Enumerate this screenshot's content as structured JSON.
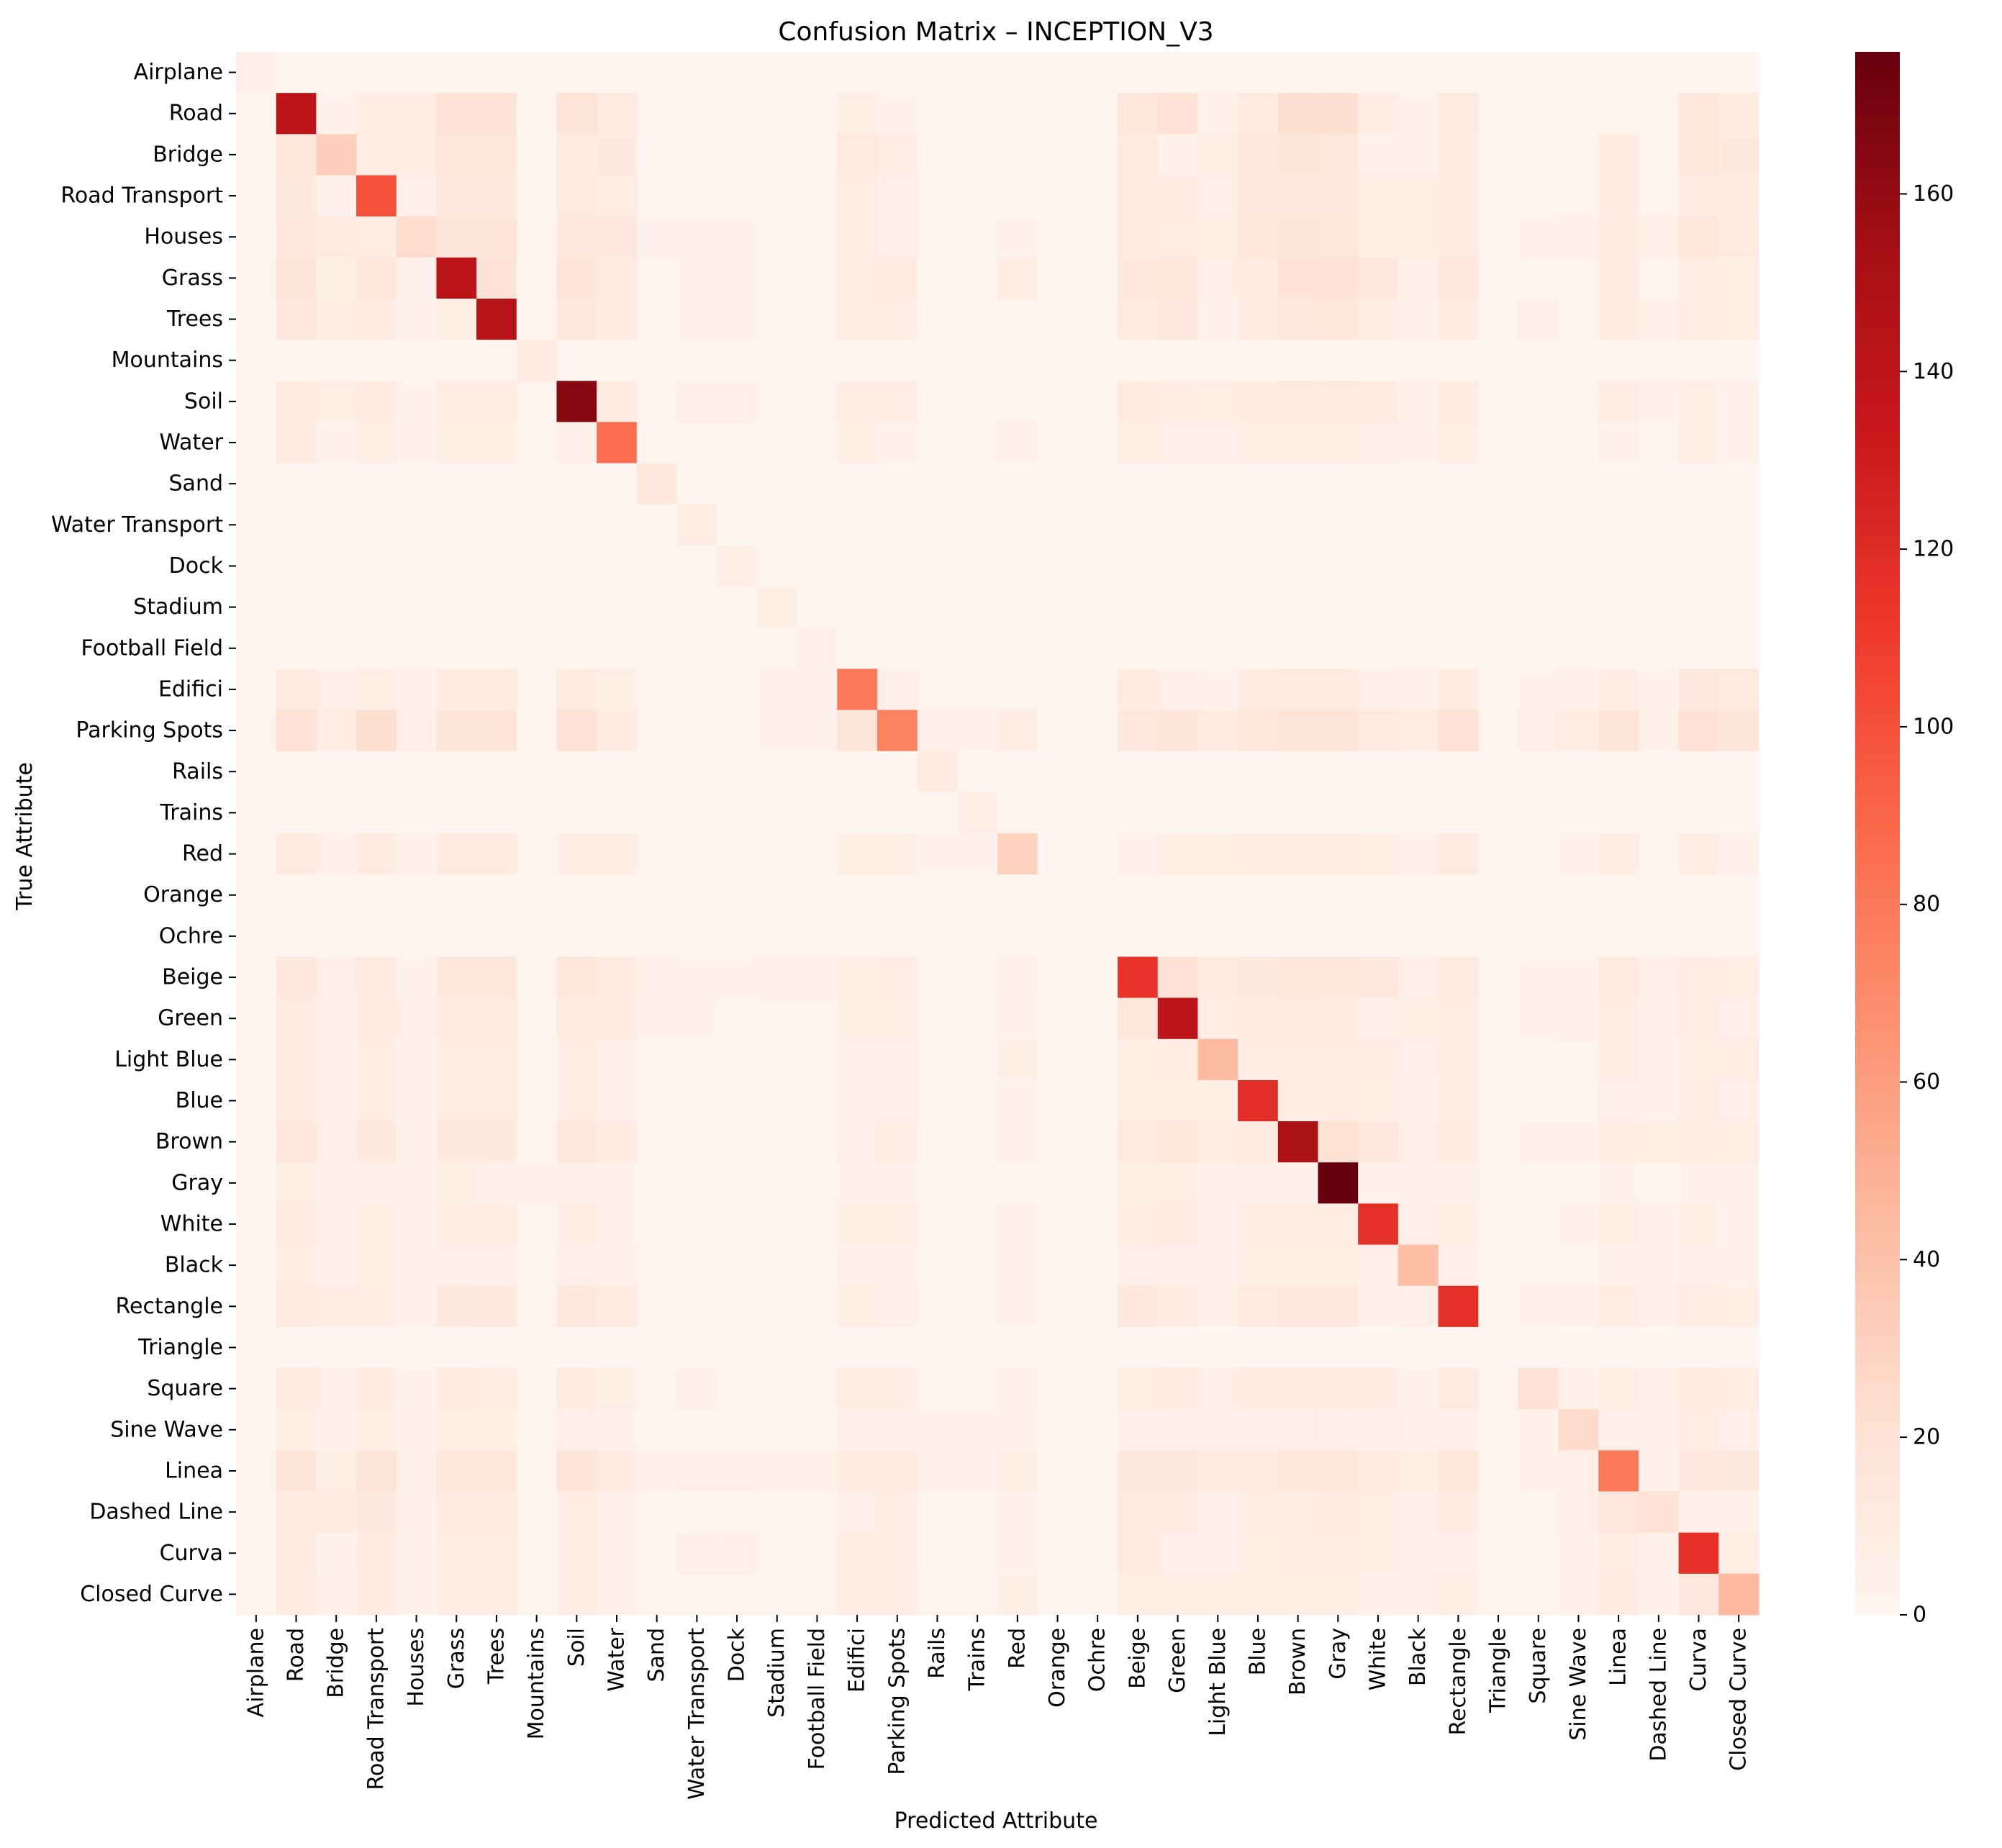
{
  "chart_data": {
    "type": "heatmap",
    "title": "Confusion Matrix – INCEPTION_V3",
    "xlabel": "Predicted Attribute",
    "ylabel": "True Attribute",
    "labels": [
      "Airplane",
      "Road",
      "Bridge",
      "Road Transport",
      "Houses",
      "Grass",
      "Trees",
      "Mountains",
      "Soil",
      "Water",
      "Sand",
      "Water Transport",
      "Dock",
      "Stadium",
      "Football Field",
      "Edifici ",
      "Parking Spots",
      "Rails",
      "Trains",
      "Red",
      "Orange",
      "Ochre",
      "Beige",
      "Green",
      "Light Blue",
      "Blue",
      "Brown",
      "Gray",
      "White",
      "Black",
      "Rectangle",
      "Triangle",
      "Square",
      "Sine Wave",
      "Linea ",
      "Dashed Line",
      "Curva ",
      "Closed Curve"
    ],
    "colormap": "Reds",
    "color_range": [
      0,
      176
    ],
    "colorbar_ticks": [
      0,
      20,
      40,
      60,
      80,
      100,
      120,
      140,
      160
    ],
    "matrix": [
      [
        6,
        0,
        0,
        0,
        0,
        0,
        0,
        0,
        0,
        0,
        0,
        0,
        0,
        0,
        0,
        0,
        0,
        0,
        0,
        0,
        0,
        0,
        0,
        0,
        0,
        0,
        0,
        0,
        0,
        0,
        0,
        0,
        0,
        0,
        0,
        0,
        0,
        0
      ],
      [
        2,
        140,
        4,
        9,
        8,
        20,
        20,
        2,
        18,
        12,
        2,
        2,
        2,
        2,
        2,
        7,
        4,
        2,
        2,
        2,
        0,
        0,
        16,
        20,
        5,
        12,
        22,
        22,
        9,
        4,
        12,
        2,
        2,
        2,
        2,
        2,
        16,
        10
      ],
      [
        2,
        16,
        32,
        9,
        9,
        16,
        16,
        2,
        12,
        13,
        2,
        2,
        2,
        2,
        2,
        12,
        8,
        2,
        2,
        2,
        0,
        0,
        12,
        4,
        7,
        14,
        17,
        15,
        5,
        5,
        10,
        2,
        2,
        2,
        10,
        2,
        16,
        13
      ],
      [
        2,
        13,
        3,
        100,
        6,
        14,
        14,
        2,
        12,
        9,
        2,
        2,
        2,
        2,
        2,
        8,
        6,
        2,
        2,
        2,
        0,
        0,
        10,
        12,
        6,
        14,
        15,
        14,
        7,
        7,
        10,
        2,
        2,
        2,
        10,
        2,
        12,
        10
      ],
      [
        2,
        15,
        12,
        9,
        24,
        17,
        17,
        2,
        14,
        14,
        3,
        3,
        3,
        2,
        2,
        8,
        6,
        2,
        2,
        3,
        0,
        0,
        12,
        9,
        7,
        16,
        17,
        16,
        7,
        7,
        10,
        2,
        3,
        5,
        10,
        5,
        16,
        12
      ],
      [
        2,
        17,
        7,
        16,
        3,
        142,
        20,
        2,
        17,
        10,
        2,
        4,
        4,
        2,
        2,
        8,
        10,
        2,
        2,
        8,
        0,
        0,
        14,
        16,
        6,
        12,
        20,
        20,
        14,
        5,
        14,
        2,
        2,
        2,
        10,
        2,
        9,
        7
      ],
      [
        2,
        14,
        9,
        11,
        3,
        7,
        145,
        2,
        14,
        10,
        2,
        4,
        4,
        2,
        2,
        8,
        8,
        2,
        2,
        2,
        0,
        0,
        10,
        14,
        4,
        10,
        14,
        16,
        9,
        5,
        10,
        2,
        6,
        2,
        10,
        5,
        9,
        7
      ],
      [
        0,
        0,
        0,
        0,
        0,
        0,
        0,
        10,
        0,
        0,
        0,
        0,
        0,
        0,
        0,
        0,
        0,
        0,
        0,
        0,
        0,
        0,
        0,
        0,
        0,
        0,
        0,
        0,
        0,
        0,
        0,
        0,
        0,
        0,
        0,
        0,
        0,
        0
      ],
      [
        2,
        10,
        7,
        10,
        3,
        9,
        9,
        2,
        165,
        10,
        2,
        6,
        6,
        2,
        2,
        8,
        8,
        2,
        2,
        2,
        0,
        0,
        10,
        9,
        7,
        11,
        12,
        12,
        10,
        5,
        11,
        2,
        2,
        2,
        9,
        5,
        7,
        5
      ],
      [
        2,
        10,
        3,
        7,
        3,
        7,
        7,
        2,
        6,
        85,
        2,
        2,
        2,
        2,
        2,
        7,
        5,
        2,
        2,
        5,
        0,
        0,
        7,
        6,
        6,
        7,
        7,
        7,
        6,
        3,
        7,
        2,
        2,
        2,
        5,
        2,
        7,
        5
      ],
      [
        0,
        0,
        0,
        0,
        0,
        0,
        0,
        0,
        0,
        0,
        14,
        0,
        0,
        0,
        0,
        0,
        0,
        0,
        0,
        0,
        0,
        0,
        0,
        0,
        0,
        0,
        0,
        0,
        0,
        0,
        0,
        0,
        0,
        0,
        0,
        0,
        0,
        0
      ],
      [
        0,
        0,
        0,
        0,
        0,
        0,
        0,
        0,
        0,
        0,
        0,
        8,
        0,
        0,
        0,
        0,
        0,
        0,
        0,
        0,
        0,
        0,
        0,
        0,
        0,
        0,
        0,
        0,
        0,
        0,
        0,
        0,
        0,
        0,
        0,
        0,
        0,
        0
      ],
      [
        0,
        0,
        0,
        0,
        0,
        0,
        0,
        0,
        0,
        0,
        0,
        0,
        7,
        0,
        0,
        0,
        0,
        0,
        0,
        0,
        0,
        0,
        0,
        0,
        0,
        0,
        0,
        0,
        0,
        0,
        0,
        0,
        0,
        0,
        0,
        0,
        0,
        0
      ],
      [
        0,
        0,
        0,
        0,
        0,
        0,
        0,
        0,
        0,
        0,
        0,
        0,
        0,
        7,
        0,
        0,
        0,
        0,
        0,
        0,
        0,
        0,
        0,
        0,
        0,
        0,
        0,
        0,
        0,
        0,
        0,
        0,
        0,
        0,
        0,
        0,
        0,
        0
      ],
      [
        0,
        0,
        0,
        0,
        0,
        0,
        0,
        0,
        0,
        0,
        0,
        0,
        0,
        2,
        6,
        0,
        0,
        0,
        0,
        0,
        0,
        0,
        0,
        0,
        0,
        0,
        0,
        0,
        0,
        0,
        0,
        0,
        0,
        0,
        0,
        0,
        0,
        0
      ],
      [
        2,
        11,
        6,
        7,
        5,
        11,
        11,
        2,
        10,
        7,
        2,
        2,
        2,
        3,
        3,
        80,
        6,
        2,
        2,
        2,
        0,
        0,
        10,
        6,
        4,
        10,
        12,
        12,
        6,
        5,
        10,
        2,
        3,
        5,
        8,
        4,
        14,
        12
      ],
      [
        2,
        20,
        8,
        22,
        6,
        18,
        18,
        2,
        20,
        10,
        2,
        2,
        2,
        3,
        3,
        18,
        75,
        5,
        5,
        8,
        0,
        0,
        14,
        17,
        12,
        16,
        18,
        18,
        12,
        8,
        20,
        2,
        6,
        8,
        18,
        5,
        20,
        17
      ],
      [
        0,
        0,
        0,
        0,
        0,
        0,
        0,
        0,
        0,
        0,
        0,
        0,
        0,
        0,
        0,
        0,
        0,
        10,
        0,
        0,
        0,
        0,
        0,
        0,
        0,
        0,
        0,
        0,
        0,
        0,
        0,
        0,
        0,
        0,
        0,
        0,
        0,
        0
      ],
      [
        0,
        0,
        0,
        0,
        0,
        0,
        0,
        0,
        0,
        0,
        0,
        0,
        0,
        0,
        0,
        0,
        0,
        0,
        7,
        0,
        0,
        0,
        0,
        0,
        0,
        0,
        0,
        0,
        0,
        0,
        0,
        0,
        0,
        0,
        0,
        0,
        0,
        0
      ],
      [
        2,
        12,
        6,
        10,
        5,
        10,
        10,
        2,
        9,
        8,
        2,
        2,
        2,
        2,
        2,
        7,
        7,
        3,
        3,
        30,
        0,
        0,
        6,
        7,
        7,
        8,
        9,
        9,
        7,
        6,
        10,
        2,
        2,
        5,
        8,
        2,
        8,
        5
      ],
      [
        0,
        0,
        0,
        0,
        0,
        0,
        0,
        0,
        0,
        0,
        0,
        0,
        0,
        0,
        0,
        0,
        0,
        0,
        0,
        0,
        0,
        0,
        0,
        0,
        0,
        0,
        0,
        0,
        0,
        0,
        0,
        0,
        0,
        0,
        0,
        0,
        0,
        0
      ],
      [
        0,
        0,
        0,
        0,
        0,
        0,
        0,
        0,
        0,
        0,
        0,
        0,
        0,
        0,
        0,
        0,
        0,
        0,
        0,
        0,
        0,
        0,
        0,
        0,
        0,
        0,
        0,
        0,
        0,
        0,
        0,
        0,
        0,
        0,
        0,
        0,
        0,
        0
      ],
      [
        2,
        14,
        6,
        12,
        3,
        16,
        16,
        2,
        16,
        10,
        5,
        3,
        3,
        5,
        5,
        7,
        9,
        2,
        2,
        5,
        0,
        0,
        115,
        20,
        10,
        13,
        16,
        16,
        15,
        6,
        12,
        2,
        3,
        3,
        12,
        6,
        8,
        7
      ],
      [
        2,
        12,
        5,
        10,
        6,
        10,
        10,
        2,
        10,
        10,
        3,
        4,
        2,
        2,
        2,
        7,
        7,
        2,
        2,
        3,
        0,
        0,
        16,
        140,
        8,
        12,
        12,
        10,
        5,
        7,
        9,
        2,
        3,
        5,
        8,
        5,
        8,
        6
      ],
      [
        2,
        10,
        5,
        8,
        3,
        9,
        9,
        2,
        8,
        6,
        2,
        2,
        2,
        2,
        2,
        6,
        6,
        2,
        2,
        7,
        0,
        0,
        7,
        8,
        44,
        9,
        9,
        9,
        8,
        6,
        8,
        2,
        2,
        2,
        8,
        4,
        7,
        9
      ],
      [
        2,
        10,
        5,
        8,
        3,
        9,
        9,
        2,
        8,
        6,
        2,
        2,
        2,
        2,
        2,
        6,
        6,
        2,
        2,
        3,
        0,
        0,
        7,
        7,
        7,
        118,
        8,
        8,
        7,
        3,
        8,
        2,
        2,
        2,
        6,
        4,
        8,
        6
      ],
      [
        2,
        14,
        6,
        13,
        3,
        13,
        13,
        2,
        14,
        10,
        2,
        2,
        2,
        2,
        2,
        6,
        8,
        2,
        2,
        4,
        0,
        0,
        12,
        16,
        9,
        11,
        150,
        21,
        15,
        6,
        10,
        2,
        3,
        3,
        9,
        7,
        9,
        7
      ],
      [
        2,
        7,
        3,
        5,
        3,
        7,
        4,
        4,
        6,
        4,
        2,
        2,
        2,
        2,
        2,
        4,
        4,
        2,
        2,
        2,
        0,
        0,
        7,
        7,
        4,
        6,
        5,
        176,
        4,
        4,
        4,
        2,
        2,
        2,
        4,
        2,
        4,
        4
      ],
      [
        2,
        10,
        5,
        7,
        5,
        9,
        9,
        2,
        8,
        4,
        2,
        2,
        2,
        2,
        2,
        7,
        7,
        2,
        2,
        3,
        0,
        0,
        9,
        10,
        5,
        9,
        9,
        9,
        116,
        6,
        7,
        2,
        2,
        5,
        7,
        5,
        7,
        4
      ],
      [
        2,
        8,
        5,
        7,
        3,
        6,
        6,
        2,
        6,
        5,
        2,
        2,
        2,
        2,
        2,
        5,
        5,
        2,
        2,
        3,
        0,
        0,
        6,
        6,
        5,
        7,
        7,
        7,
        6,
        42,
        6,
        2,
        2,
        2,
        5,
        4,
        6,
        4
      ],
      [
        2,
        12,
        9,
        9,
        3,
        13,
        15,
        2,
        14,
        12,
        2,
        2,
        2,
        2,
        2,
        7,
        6,
        2,
        2,
        3,
        0,
        0,
        14,
        10,
        5,
        12,
        14,
        14,
        5,
        6,
        117,
        2,
        3,
        5,
        8,
        5,
        8,
        7
      ],
      [
        0,
        0,
        0,
        0,
        0,
        0,
        0,
        0,
        0,
        0,
        0,
        0,
        0,
        0,
        0,
        0,
        0,
        0,
        0,
        0,
        0,
        0,
        0,
        0,
        0,
        0,
        0,
        0,
        0,
        0,
        0,
        0,
        0,
        0,
        0,
        0,
        0,
        0
      ],
      [
        2,
        11,
        6,
        10,
        3,
        10,
        9,
        2,
        10,
        7,
        2,
        5,
        2,
        2,
        2,
        9,
        9,
        2,
        2,
        5,
        0,
        0,
        7,
        10,
        6,
        10,
        10,
        10,
        10,
        3,
        12,
        2,
        20,
        5,
        7,
        5,
        10,
        8
      ],
      [
        2,
        7,
        4,
        7,
        5,
        7,
        7,
        2,
        6,
        4,
        2,
        2,
        2,
        2,
        2,
        5,
        5,
        3,
        3,
        3,
        0,
        0,
        6,
        6,
        6,
        6,
        6,
        6,
        3,
        6,
        6,
        2,
        3,
        25,
        6,
        5,
        8,
        6
      ],
      [
        2,
        18,
        7,
        18,
        5,
        16,
        16,
        2,
        17,
        10,
        3,
        6,
        6,
        5,
        5,
        12,
        12,
        5,
        5,
        7,
        0,
        0,
        13,
        13,
        10,
        12,
        16,
        16,
        11,
        7,
        16,
        2,
        4,
        6,
        80,
        5,
        15,
        13
      ],
      [
        2,
        11,
        12,
        13,
        5,
        10,
        10,
        2,
        9,
        6,
        2,
        2,
        2,
        2,
        2,
        6,
        8,
        2,
        2,
        3,
        0,
        0,
        10,
        10,
        5,
        9,
        9,
        11,
        7,
        6,
        10,
        2,
        2,
        6,
        14,
        20,
        5,
        5
      ],
      [
        2,
        10,
        4,
        10,
        3,
        9,
        9,
        2,
        9,
        6,
        2,
        6,
        6,
        2,
        2,
        8,
        8,
        2,
        2,
        3,
        0,
        0,
        10,
        6,
        6,
        7,
        9,
        9,
        7,
        6,
        6,
        2,
        2,
        5,
        8,
        5,
        116,
        7
      ],
      [
        2,
        10,
        5,
        10,
        3,
        9,
        9,
        2,
        9,
        6,
        2,
        2,
        2,
        2,
        2,
        9,
        9,
        2,
        2,
        7,
        0,
        0,
        7,
        7,
        7,
        7,
        7,
        7,
        5,
        6,
        7,
        2,
        2,
        5,
        10,
        3,
        14,
        45
      ]
    ]
  }
}
